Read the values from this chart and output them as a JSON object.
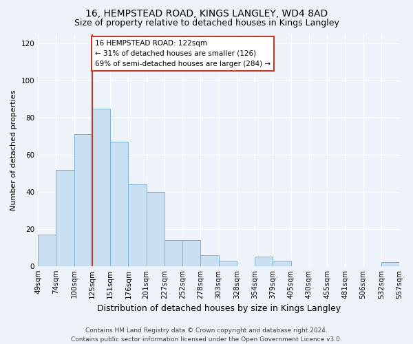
{
  "title": "16, HEMPSTEAD ROAD, KINGS LANGLEY, WD4 8AD",
  "subtitle": "Size of property relative to detached houses in Kings Langley",
  "xlabel": "Distribution of detached houses by size in Kings Langley",
  "ylabel": "Number of detached properties",
  "bar_color": "#c9dff2",
  "bar_edge_color": "#7ab3d8",
  "background_color": "#eef2f9",
  "grid_color": "#ffffff",
  "bins": [
    "49sqm",
    "74sqm",
    "100sqm",
    "125sqm",
    "151sqm",
    "176sqm",
    "201sqm",
    "227sqm",
    "252sqm",
    "278sqm",
    "303sqm",
    "328sqm",
    "354sqm",
    "379sqm",
    "405sqm",
    "430sqm",
    "455sqm",
    "481sqm",
    "506sqm",
    "532sqm",
    "557sqm"
  ],
  "values": [
    17,
    52,
    71,
    85,
    67,
    44,
    40,
    14,
    14,
    6,
    3,
    0,
    5,
    3,
    0,
    0,
    0,
    0,
    0,
    2
  ],
  "ylim": [
    0,
    125
  ],
  "yticks": [
    0,
    20,
    40,
    60,
    80,
    100,
    120
  ],
  "vline_x": 3,
  "vline_color": "#c0392b",
  "annotation_text": "16 HEMPSTEAD ROAD: 122sqm\n← 31% of detached houses are smaller (126)\n69% of semi-detached houses are larger (284) →",
  "annotation_box_color": "#ffffff",
  "annotation_box_edge": "#c0392b",
  "footer": "Contains HM Land Registry data © Crown copyright and database right 2024.\nContains public sector information licensed under the Open Government Licence v3.0.",
  "title_fontsize": 10,
  "subtitle_fontsize": 9,
  "xlabel_fontsize": 9,
  "ylabel_fontsize": 8,
  "tick_fontsize": 7.5,
  "annotation_fontsize": 7.5,
  "footer_fontsize": 6.5
}
